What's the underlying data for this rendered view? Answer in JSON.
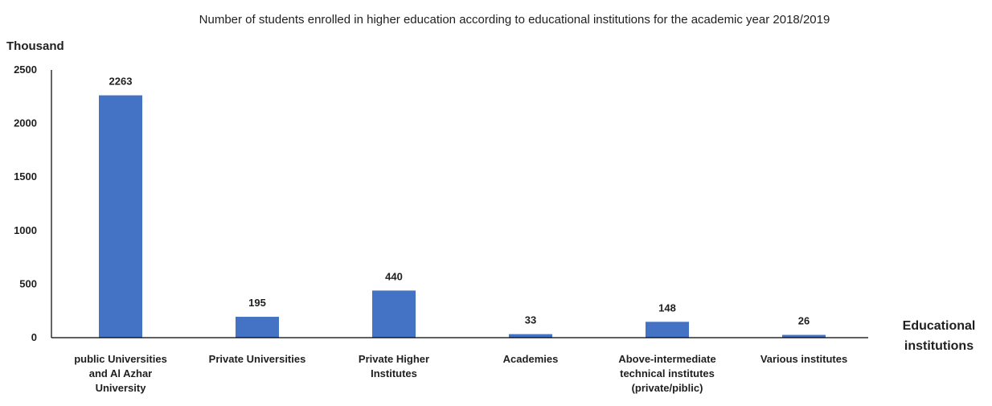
{
  "chart_data": {
    "type": "bar",
    "title": "Number of students enrolled in higher education according to educational institutions for the academic year 2018/2019",
    "ylabel": "Thousand",
    "xlabel_lines": [
      "Educational",
      "institutions"
    ],
    "categories": [
      "public Universities and Al Azhar University",
      "Private Universities",
      "Private Higher Institutes",
      "Academies",
      "Above-intermediate technical institutes (private/piblic)",
      "Various institutes"
    ],
    "category_label_lines": [
      [
        "public Universities",
        "and Al Azhar",
        "University"
      ],
      [
        "Private Universities"
      ],
      [
        "Private Higher",
        "Institutes"
      ],
      [
        "Academies"
      ],
      [
        "Above-intermediate",
        "technical institutes",
        "(private/piblic)"
      ],
      [
        "Various institutes"
      ]
    ],
    "values": [
      2263,
      195,
      440,
      33,
      148,
      26
    ],
    "ylim": [
      0,
      2500
    ],
    "yticks": [
      0,
      500,
      1000,
      1500,
      2000,
      2500
    ],
    "grid": false,
    "legend": "none",
    "bar_color": "#4472C4"
  }
}
